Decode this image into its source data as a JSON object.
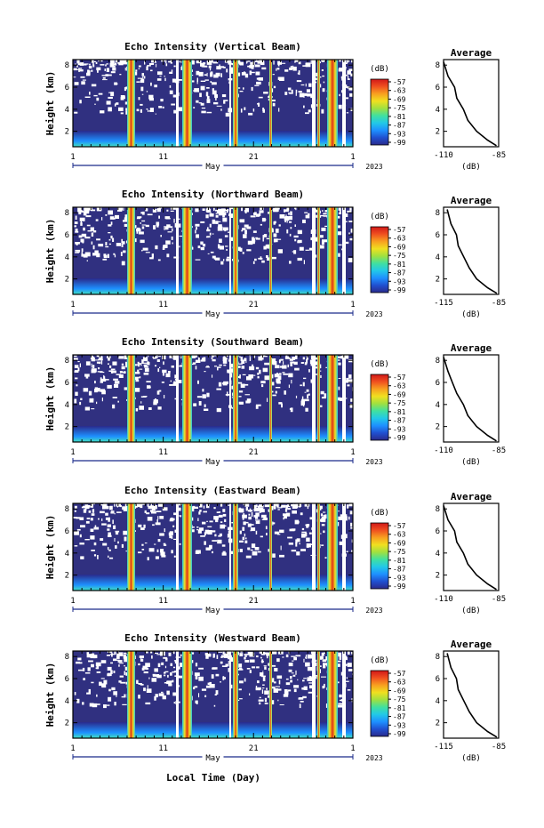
{
  "footer_label": "Local Time (Day)",
  "colorbar": {
    "unit": "(dB)",
    "ticks": [
      "-57",
      "-63",
      "-69",
      "-75",
      "-81",
      "-87",
      "-93",
      "-99"
    ],
    "colors": [
      "#2a2a8c",
      "#2050d0",
      "#1e90ff",
      "#22c8e8",
      "#40e0a0",
      "#a0e040",
      "#f0e020",
      "#f8a020",
      "#f05020",
      "#d01818"
    ]
  },
  "x_axis": {
    "ticks": [
      "1",
      "11",
      "21",
      "1"
    ],
    "month": "May",
    "year": "2023"
  },
  "chart_data": [
    {
      "type": "heatmap",
      "title": "Echo Intensity (Vertical Beam)",
      "ylabel": "Height (km)",
      "y_ticks": [
        "8",
        "6",
        "4",
        "2"
      ],
      "ylim": [
        0.6,
        8.5
      ],
      "color_range_db": [
        -99,
        -57
      ],
      "profile": {
        "title": "Average",
        "xlabel": "(dB)",
        "x_ticks": [
          "-110",
          "-85"
        ],
        "xlim": [
          -110,
          -85
        ],
        "y_ticks": [
          "8",
          "6",
          "4",
          "2"
        ],
        "heights_km": [
          0.7,
          1.2,
          2.0,
          3.0,
          4.0,
          5.0,
          6.0,
          7.0,
          8.3
        ],
        "values_db": [
          -86,
          -90,
          -95,
          -99,
          -101,
          -104,
          -105,
          -108,
          -110
        ]
      }
    },
    {
      "type": "heatmap",
      "title": "Echo Intensity (Northward Beam)",
      "ylabel": "Height (km)",
      "y_ticks": [
        "8",
        "6",
        "4",
        "2"
      ],
      "ylim": [
        0.6,
        8.5
      ],
      "color_range_db": [
        -99,
        -57
      ],
      "profile": {
        "title": "Average",
        "xlabel": "(dB)",
        "x_ticks": [
          "-115",
          "-85"
        ],
        "xlim": [
          -115,
          -85
        ],
        "y_ticks": [
          "8",
          "6",
          "4",
          "2"
        ],
        "heights_km": [
          0.7,
          1.2,
          2.0,
          3.0,
          4.0,
          5.0,
          6.0,
          7.0,
          8.3
        ],
        "values_db": [
          -86,
          -91,
          -97,
          -101,
          -104,
          -107,
          -108,
          -111,
          -113
        ]
      }
    },
    {
      "type": "heatmap",
      "title": "Echo Intensity (Southward Beam)",
      "ylabel": "Height (km)",
      "y_ticks": [
        "8",
        "6",
        "4",
        "2"
      ],
      "ylim": [
        0.6,
        8.5
      ],
      "color_range_db": [
        -99,
        -57
      ],
      "profile": {
        "title": "Average",
        "xlabel": "(dB)",
        "x_ticks": [
          "-110",
          "-85"
        ],
        "xlim": [
          -110,
          -85
        ],
        "y_ticks": [
          "8",
          "6",
          "4",
          "2"
        ],
        "heights_km": [
          0.7,
          1.2,
          2.0,
          3.0,
          4.0,
          5.0,
          6.0,
          7.0,
          8.3
        ],
        "values_db": [
          -86,
          -90,
          -95,
          -99,
          -101,
          -104,
          -106,
          -108,
          -110
        ]
      }
    },
    {
      "type": "heatmap",
      "title": "Echo Intensity (Eastward Beam)",
      "ylabel": "Height (km)",
      "y_ticks": [
        "8",
        "6",
        "4",
        "2"
      ],
      "ylim": [
        0.6,
        8.5
      ],
      "color_range_db": [
        -99,
        -57
      ],
      "profile": {
        "title": "Average",
        "xlabel": "(dB)",
        "x_ticks": [
          "-110",
          "-85"
        ],
        "xlim": [
          -110,
          -85
        ],
        "y_ticks": [
          "8",
          "6",
          "4",
          "2"
        ],
        "heights_km": [
          0.7,
          1.2,
          2.0,
          3.0,
          4.0,
          5.0,
          6.0,
          7.0,
          8.3
        ],
        "values_db": [
          -86,
          -90,
          -95,
          -99,
          -101,
          -104,
          -105,
          -108,
          -110
        ]
      }
    },
    {
      "type": "heatmap",
      "title": "Echo Intensity (Westward Beam)",
      "ylabel": "Height (km)",
      "y_ticks": [
        "8",
        "6",
        "4",
        "2"
      ],
      "ylim": [
        0.6,
        8.5
      ],
      "color_range_db": [
        -99,
        -57
      ],
      "profile": {
        "title": "Average",
        "xlabel": "(dB)",
        "x_ticks": [
          "-115",
          "-85"
        ],
        "xlim": [
          -115,
          -85
        ],
        "y_ticks": [
          "8",
          "6",
          "4",
          "2"
        ],
        "heights_km": [
          0.7,
          1.2,
          2.0,
          3.0,
          4.0,
          5.0,
          6.0,
          7.0,
          8.3
        ],
        "values_db": [
          -86,
          -91,
          -97,
          -101,
          -104,
          -107,
          -108,
          -111,
          -113
        ]
      }
    }
  ]
}
